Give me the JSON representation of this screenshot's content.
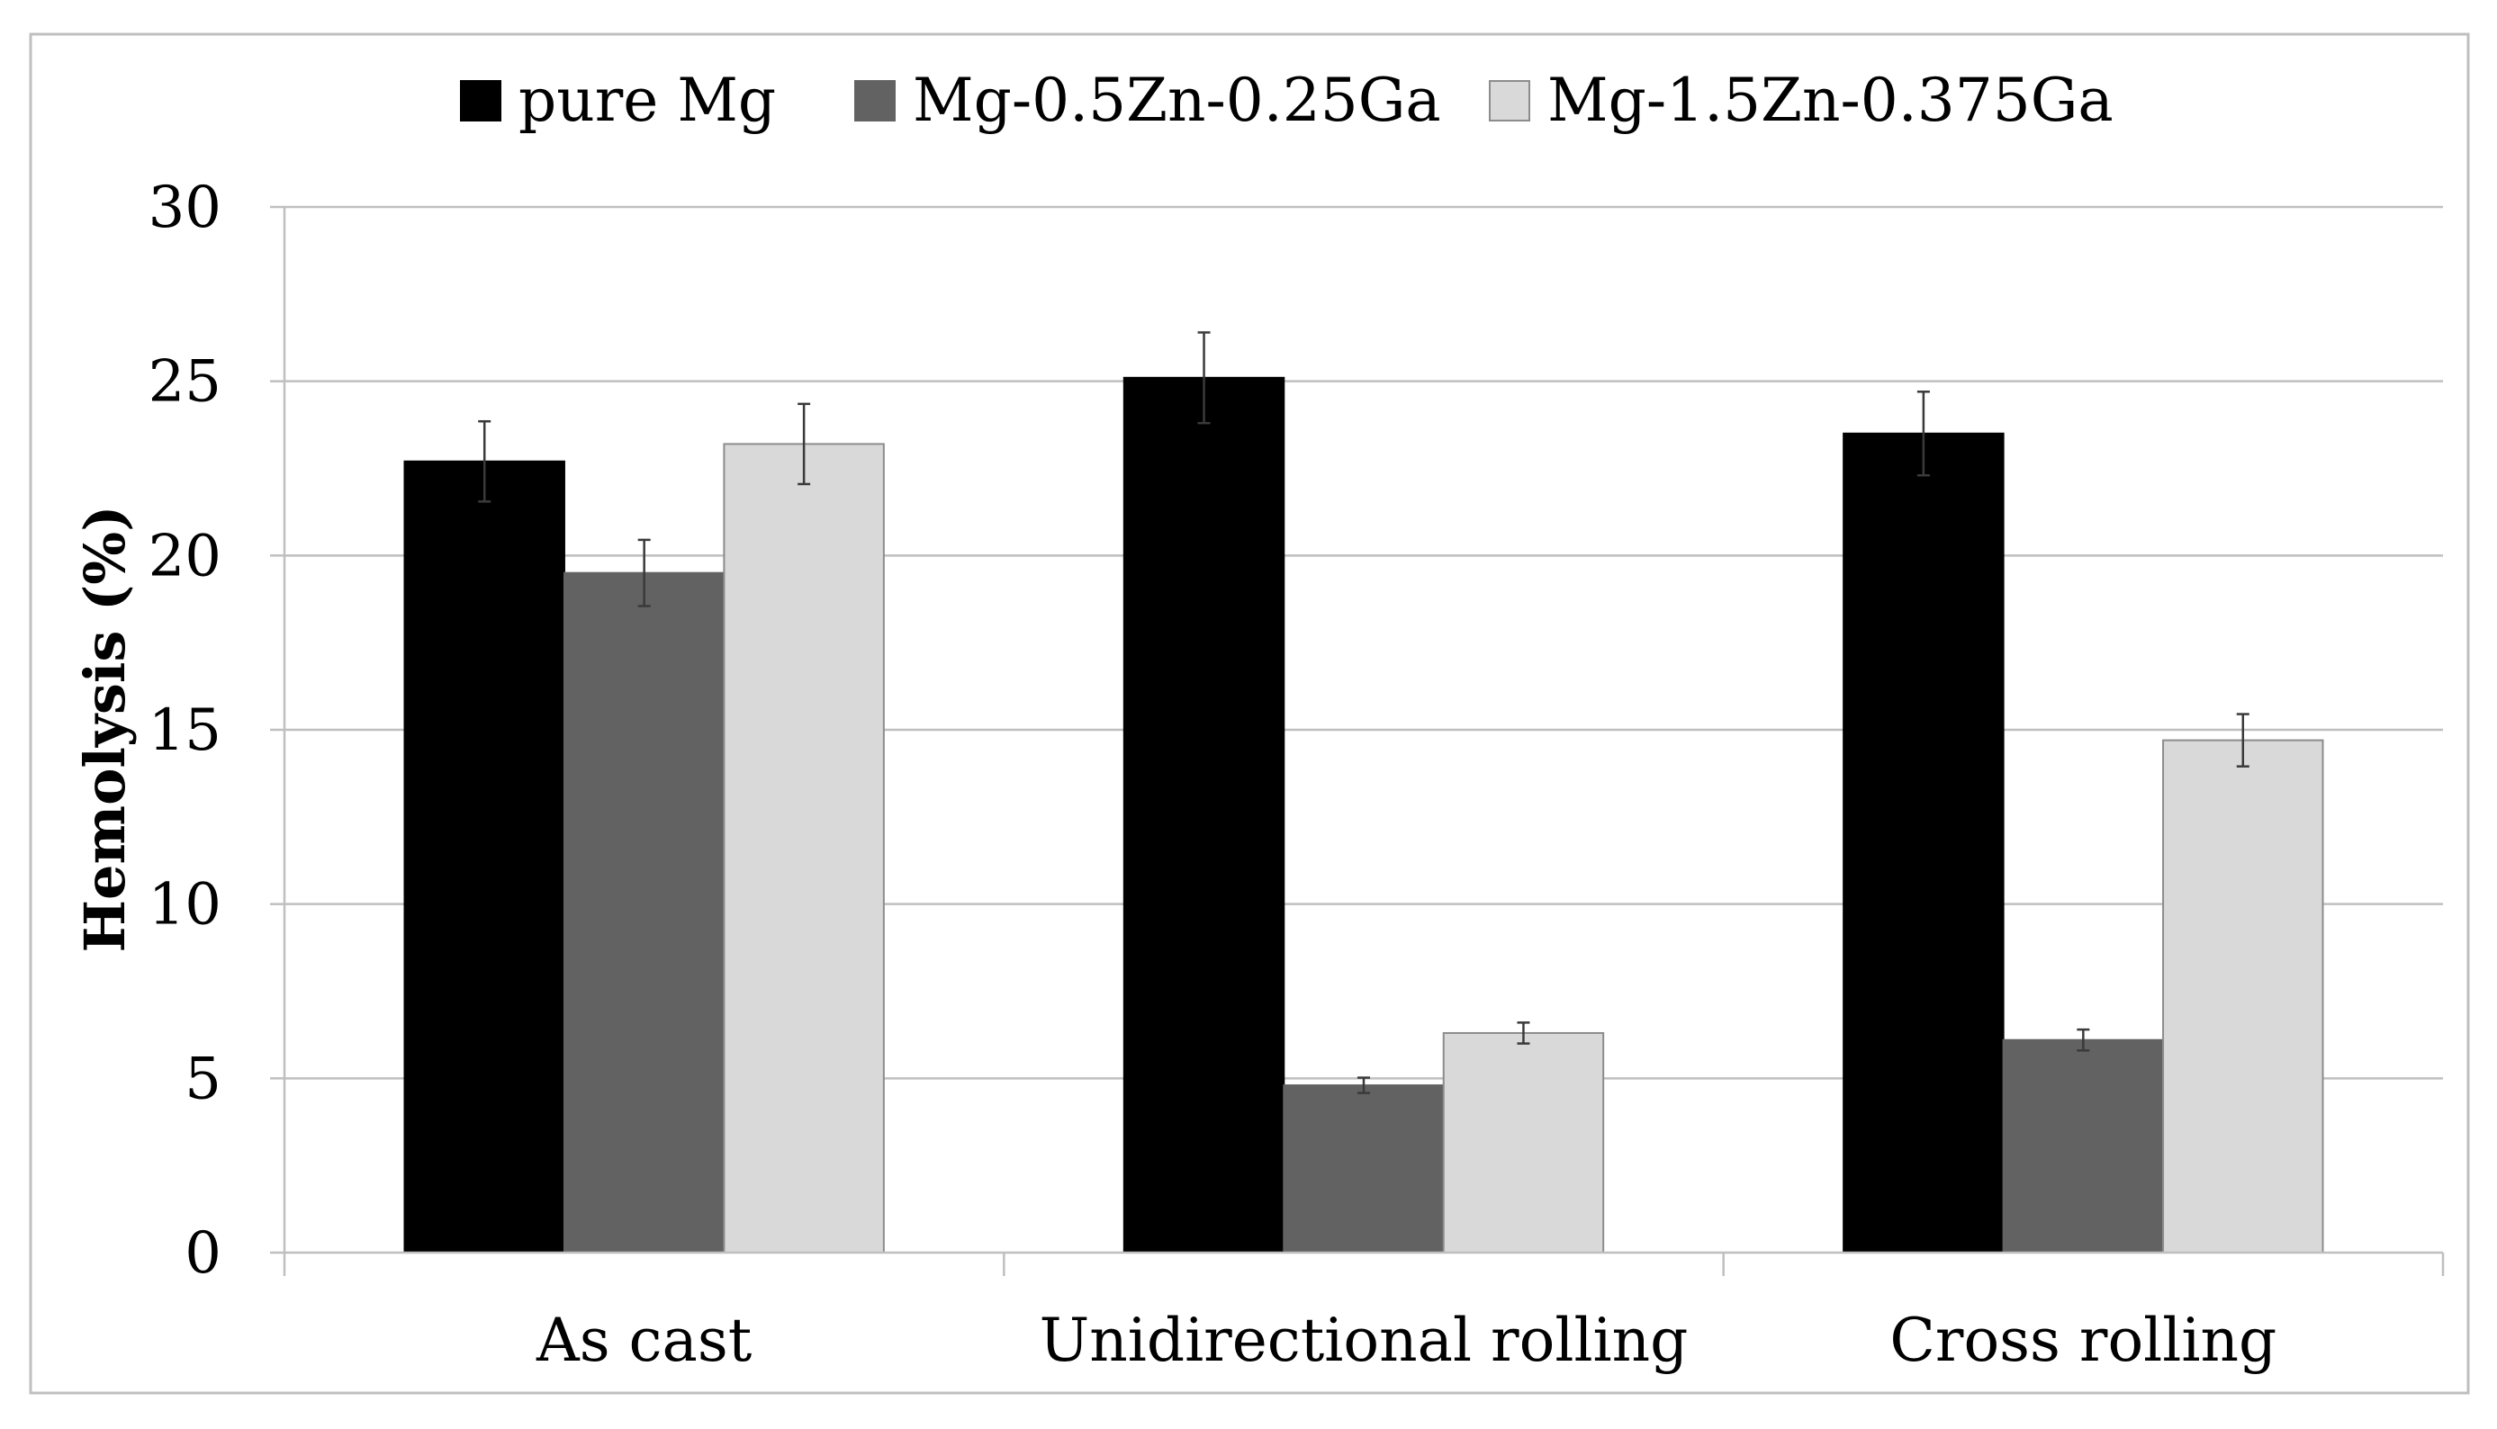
{
  "chart_data": {
    "type": "bar",
    "title": "",
    "xlabel": "",
    "ylabel": "Hemolysis (%)",
    "ylim": [
      0,
      30
    ],
    "yticks": [
      0,
      5,
      10,
      15,
      20,
      25,
      30
    ],
    "ytick_labels": [
      "0",
      "5",
      "10",
      "15",
      "20",
      "25",
      "30"
    ],
    "grid": true,
    "legend_position": "top-center",
    "categories": [
      "As cast",
      "Unidirectional rolling",
      "Cross rolling"
    ],
    "series": [
      {
        "name": "pure Mg",
        "color": "#000000",
        "values": [
          22.7,
          25.1,
          23.5
        ],
        "errors": [
          1.15,
          1.3,
          1.2
        ]
      },
      {
        "name": "Mg-0.5Zn-0.25Ga",
        "color": "#626262",
        "values": [
          19.5,
          4.8,
          6.1
        ],
        "errors": [
          0.95,
          0.22,
          0.3
        ]
      },
      {
        "name": "Mg-1.5Zn-0.375Ga",
        "color": "#d9d9d9",
        "values": [
          23.2,
          6.3,
          14.7
        ],
        "errors": [
          1.15,
          0.3,
          0.75
        ]
      }
    ]
  }
}
